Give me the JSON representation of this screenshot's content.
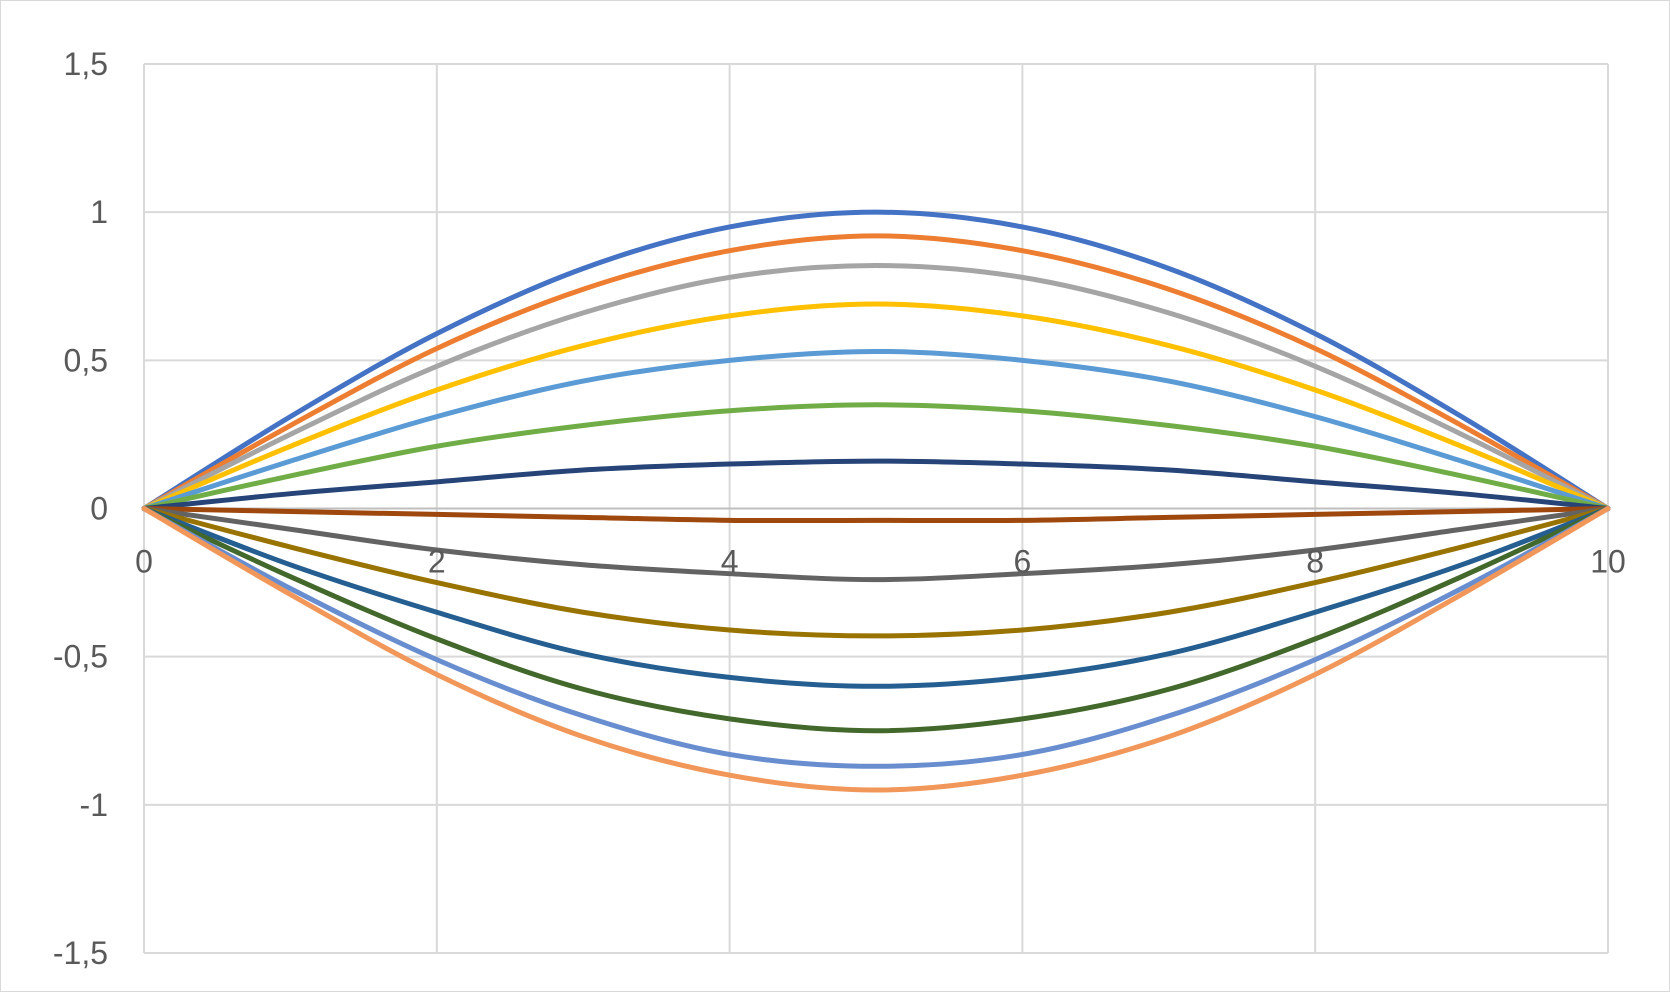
{
  "chart_data": {
    "type": "line",
    "title": "",
    "xlabel": "",
    "ylabel": "",
    "xlim": [
      0,
      10
    ],
    "ylim": [
      -1.5,
      1.5
    ],
    "x_ticks": [
      0,
      2,
      4,
      6,
      8,
      10
    ],
    "x_tick_labels": [
      "0",
      "2",
      "4",
      "6",
      "8",
      "10"
    ],
    "y_ticks": [
      1.5,
      1,
      0.5,
      0,
      -0.5,
      -1,
      -1.5
    ],
    "y_tick_labels": [
      "1,5",
      "1",
      "0,5",
      "0",
      "-0,5",
      "-1",
      "-1,5"
    ],
    "grid": true,
    "legend": "none",
    "x": [
      0,
      1,
      2,
      3,
      4,
      5,
      6,
      7,
      8,
      9,
      10
    ],
    "series": [
      {
        "color": "#4472C4",
        "values": [
          0,
          0.31,
          0.59,
          0.81,
          0.95,
          1.0,
          0.95,
          0.81,
          0.59,
          0.31,
          0
        ]
      },
      {
        "color": "#ED7D31",
        "values": [
          0,
          0.28,
          0.54,
          0.74,
          0.87,
          0.92,
          0.87,
          0.74,
          0.54,
          0.28,
          0
        ]
      },
      {
        "color": "#A5A5A5",
        "values": [
          0,
          0.25,
          0.48,
          0.66,
          0.78,
          0.82,
          0.78,
          0.66,
          0.48,
          0.25,
          0
        ]
      },
      {
        "color": "#FFC000",
        "values": [
          0,
          0.21,
          0.4,
          0.55,
          0.65,
          0.69,
          0.65,
          0.55,
          0.4,
          0.21,
          0
        ]
      },
      {
        "color": "#5B9BD5",
        "values": [
          0,
          0.16,
          0.31,
          0.43,
          0.5,
          0.53,
          0.5,
          0.43,
          0.31,
          0.16,
          0
        ]
      },
      {
        "color": "#70AD47",
        "values": [
          0,
          0.11,
          0.21,
          0.28,
          0.33,
          0.35,
          0.33,
          0.28,
          0.21,
          0.11,
          0
        ]
      },
      {
        "color": "#264478",
        "values": [
          0,
          0.05,
          0.09,
          0.13,
          0.15,
          0.16,
          0.15,
          0.13,
          0.09,
          0.05,
          0
        ]
      },
      {
        "color": "#9E480E",
        "values": [
          0,
          -0.01,
          -0.02,
          -0.03,
          -0.04,
          -0.04,
          -0.04,
          -0.03,
          -0.02,
          -0.01,
          0
        ]
      },
      {
        "color": "#636363",
        "values": [
          0,
          -0.07,
          -0.14,
          -0.19,
          -0.22,
          -0.24,
          -0.22,
          -0.19,
          -0.14,
          -0.07,
          0
        ]
      },
      {
        "color": "#997300",
        "values": [
          0,
          -0.13,
          -0.25,
          -0.35,
          -0.41,
          -0.43,
          -0.41,
          -0.35,
          -0.25,
          -0.13,
          0
        ]
      },
      {
        "color": "#255E91",
        "values": [
          0,
          -0.19,
          -0.35,
          -0.49,
          -0.57,
          -0.6,
          -0.57,
          -0.49,
          -0.35,
          -0.19,
          0
        ]
      },
      {
        "color": "#43682B",
        "values": [
          0,
          -0.23,
          -0.44,
          -0.61,
          -0.71,
          -0.75,
          -0.71,
          -0.61,
          -0.44,
          -0.23,
          0
        ]
      },
      {
        "color": "#698ED0",
        "values": [
          0,
          -0.27,
          -0.51,
          -0.7,
          -0.83,
          -0.87,
          -0.83,
          -0.7,
          -0.51,
          -0.27,
          0
        ]
      },
      {
        "color": "#F1975A",
        "values": [
          0,
          -0.29,
          -0.56,
          -0.77,
          -0.9,
          -0.95,
          -0.9,
          -0.77,
          -0.56,
          -0.29,
          0
        ]
      }
    ]
  }
}
